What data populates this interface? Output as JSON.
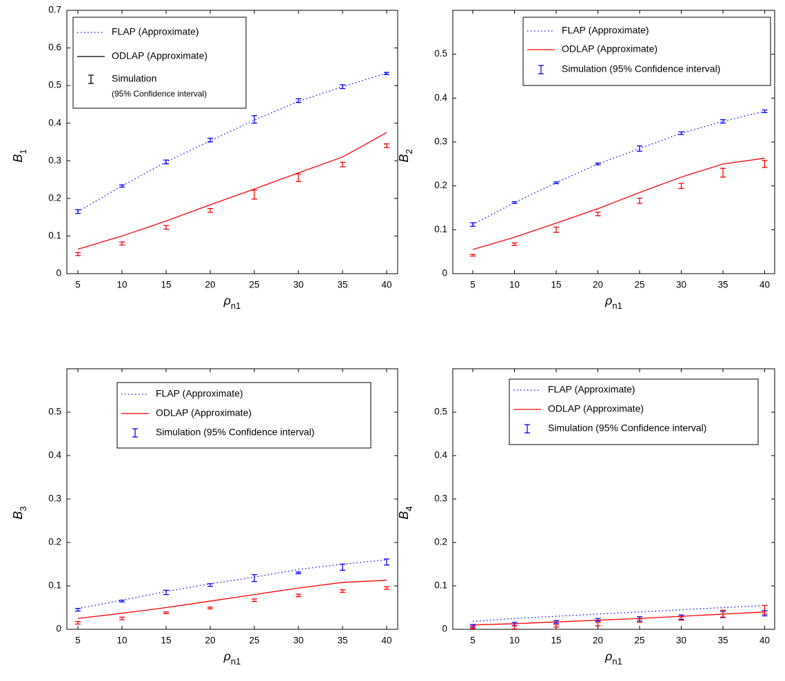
{
  "chart_data": [
    {
      "type": "line",
      "y_label": "B1",
      "x_label": "ρn1",
      "x": [
        5,
        10,
        15,
        20,
        25,
        30,
        35,
        40
      ],
      "xlim": [
        3.75,
        41.25
      ],
      "xticks": [
        5,
        10,
        15,
        20,
        25,
        30,
        35,
        40
      ],
      "ylim": [
        0,
        0.7
      ],
      "yticks": [
        0,
        0.1,
        0.2,
        0.3,
        0.4,
        0.5,
        0.6,
        0.7
      ],
      "grid": false,
      "series": [
        {
          "name": "FLAP (Approximate)",
          "color": "#0000ff",
          "legend_color": "#0000ff",
          "style": "dotted",
          "values": [
            0.165,
            0.233,
            0.297,
            0.353,
            0.408,
            0.458,
            0.497,
            0.533
          ]
        },
        {
          "name": "ODLAP (Approximate)",
          "color": "#ff0000",
          "legend_color": "#000000",
          "style": "solid",
          "values": [
            0.065,
            0.1,
            0.14,
            0.183,
            0.225,
            0.268,
            0.31,
            0.375
          ]
        },
        {
          "name": "Simulation",
          "name_note": "(95% Confidence interval)",
          "legend_color": "#000000",
          "style": "errorbar",
          "sets": [
            {
              "color": "#0000ff",
              "values": [
                0.165,
                0.233,
                0.297,
                0.355,
                0.41,
                0.46,
                0.497,
                0.532
              ],
              "errors": [
                0.005,
                0.003,
                0.005,
                0.005,
                0.01,
                0.005,
                0.005,
                0.003
              ]
            },
            {
              "color": "#ff0000",
              "values": [
                0.052,
                0.08,
                0.123,
                0.168,
                0.21,
                0.255,
                0.29,
                0.34
              ],
              "errors": [
                0.004,
                0.004,
                0.005,
                0.005,
                0.012,
                0.01,
                0.006,
                0.005
              ]
            }
          ]
        }
      ]
    },
    {
      "type": "line",
      "y_label": "B2",
      "x_label": "ρn1",
      "x": [
        5,
        10,
        15,
        20,
        25,
        30,
        35,
        40
      ],
      "xlim": [
        2.6,
        41.2
      ],
      "xticks": [
        5,
        10,
        15,
        20,
        25,
        30,
        35,
        40
      ],
      "ylim": [
        0,
        0.6
      ],
      "yticks": [
        0,
        0.1,
        0.2,
        0.3,
        0.4,
        0.5
      ],
      "grid": false,
      "series": [
        {
          "name": "FLAP (Approximate)",
          "color": "#0000ff",
          "legend_color": "#0000ff",
          "style": "dotted",
          "values": [
            0.112,
            0.162,
            0.207,
            0.25,
            0.285,
            0.32,
            0.347,
            0.37
          ]
        },
        {
          "name": "ODLAP (Approximate)",
          "color": "#ff0000",
          "legend_color": "#ff0000",
          "style": "solid",
          "values": [
            0.055,
            0.083,
            0.115,
            0.148,
            0.185,
            0.22,
            0.25,
            0.263
          ]
        },
        {
          "name": "Simulation (95% Confidence interval)",
          "legend_color": "#0000ff",
          "style": "errorbar",
          "sets": [
            {
              "color": "#0000ff",
              "values": [
                0.112,
                0.162,
                0.207,
                0.25,
                0.285,
                0.32,
                0.347,
                0.37
              ],
              "errors": [
                0.004,
                0.002,
                0.002,
                0.002,
                0.006,
                0.003,
                0.004,
                0.003
              ]
            },
            {
              "color": "#ff0000",
              "values": [
                0.042,
                0.067,
                0.1,
                0.136,
                0.166,
                0.2,
                0.23,
                0.25
              ],
              "errors": [
                0.002,
                0.003,
                0.006,
                0.004,
                0.006,
                0.006,
                0.01,
                0.008
              ]
            }
          ]
        }
      ]
    },
    {
      "type": "line",
      "y_label": "B3",
      "x_label": "ρn1",
      "x": [
        5,
        10,
        15,
        20,
        25,
        30,
        35,
        40
      ],
      "xlim": [
        3.75,
        41.25
      ],
      "xticks": [
        5,
        10,
        15,
        20,
        25,
        30,
        35,
        40
      ],
      "ylim": [
        0,
        0.6
      ],
      "yticks": [
        0,
        0.1,
        0.2,
        0.3,
        0.4,
        0.5
      ],
      "grid": false,
      "series": [
        {
          "name": "FLAP (Approximate)",
          "color": "#0000ff",
          "legend_color": "#0000ff",
          "style": "dotted",
          "values": [
            0.048,
            0.067,
            0.087,
            0.105,
            0.12,
            0.138,
            0.15,
            0.16
          ]
        },
        {
          "name": "ODLAP (Approximate)",
          "color": "#ff0000",
          "legend_color": "#ff0000",
          "style": "solid",
          "values": [
            0.025,
            0.037,
            0.05,
            0.065,
            0.08,
            0.095,
            0.108,
            0.113
          ]
        },
        {
          "name": "Simulation (95% Confidence interval)",
          "legend_color": "#0000ff",
          "style": "errorbar",
          "sets": [
            {
              "color": "#0000ff",
              "values": [
                0.045,
                0.065,
                0.085,
                0.102,
                0.118,
                0.13,
                0.143,
                0.155
              ],
              "errors": [
                0.003,
                0.002,
                0.005,
                0.003,
                0.008,
                0.002,
                0.007,
                0.007
              ]
            },
            {
              "color": "#ff0000",
              "values": [
                0.015,
                0.025,
                0.038,
                0.049,
                0.067,
                0.078,
                0.088,
                0.095
              ],
              "errors": [
                0.003,
                0.003,
                0.002,
                0.002,
                0.003,
                0.003,
                0.003,
                0.003
              ]
            }
          ]
        }
      ]
    },
    {
      "type": "line",
      "y_label": "B4",
      "x_label": "ρn1",
      "x": [
        5,
        10,
        15,
        20,
        25,
        30,
        35,
        40
      ],
      "xlim": [
        2.6,
        41.2
      ],
      "xticks": [
        5,
        10,
        15,
        20,
        25,
        30,
        35,
        40
      ],
      "ylim": [
        0,
        0.6
      ],
      "yticks": [
        0,
        0.1,
        0.2,
        0.3,
        0.4,
        0.5
      ],
      "grid": false,
      "series": [
        {
          "name": "FLAP (Approximate)",
          "color": "#0000ff",
          "legend_color": "#0000ff",
          "style": "dotted",
          "values": [
            0.018,
            0.025,
            0.03,
            0.035,
            0.04,
            0.045,
            0.05,
            0.055
          ]
        },
        {
          "name": "ODLAP (Approximate)",
          "color": "#ff0000",
          "legend_color": "#ff0000",
          "style": "solid",
          "values": [
            0.01,
            0.013,
            0.017,
            0.021,
            0.025,
            0.03,
            0.035,
            0.04
          ]
        },
        {
          "name": "Simulation (95% Confidence interval)",
          "legend_color": "#0000ff",
          "style": "errorbar",
          "sets": [
            {
              "color": "#0000ff",
              "values": [
                0.008,
                0.012,
                0.017,
                0.022,
                0.024,
                0.028,
                0.034,
                0.037
              ],
              "errors": [
                0.003,
                0.004,
                0.003,
                0.003,
                0.005,
                0.005,
                0.007,
                0.006
              ]
            },
            {
              "color": "#ff0000",
              "values": [
                0.005,
                0.005,
                0.008,
                0.012,
                0.02,
                0.025,
                0.036,
                0.045
              ],
              "errors": [
                0.003,
                0.004,
                0.003,
                0.004,
                0.004,
                0.004,
                0.008,
                0.01
              ]
            }
          ]
        }
      ]
    }
  ]
}
